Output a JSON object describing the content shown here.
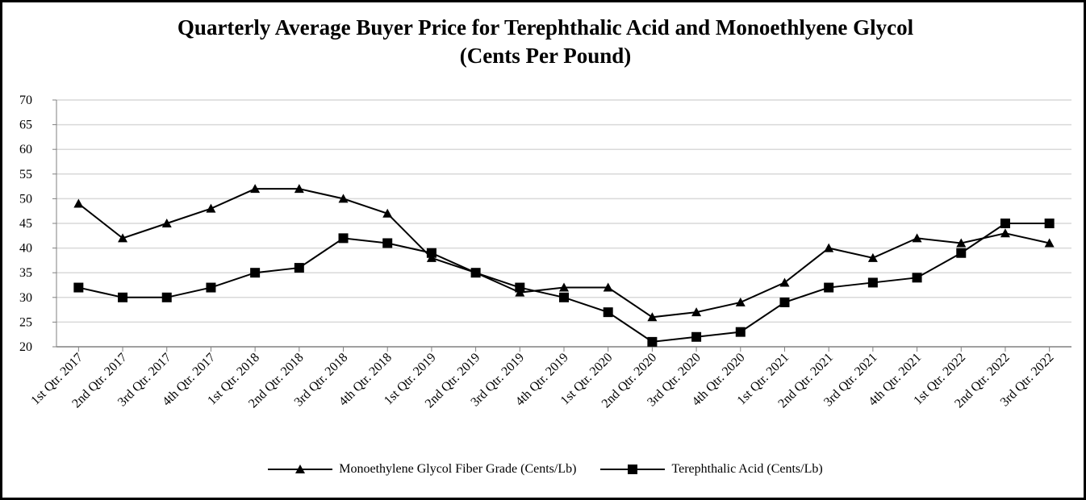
{
  "chart_data": {
    "type": "line",
    "title": "Quarterly Average Buyer Price for Terephthalic Acid and Monoethlyene Glycol",
    "subtitle": "(Cents Per Pound)",
    "xlabel": "",
    "ylabel": "",
    "ylim": [
      20,
      70
    ],
    "yticks": [
      20,
      25,
      30,
      35,
      40,
      45,
      50,
      55,
      60,
      65,
      70
    ],
    "grid": true,
    "legend_position": "bottom",
    "categories": [
      "1st Qtr. 2017",
      "2nd Qtr. 2017",
      "3rd Qtr. 2017",
      "4th Qtr. 2017",
      "1st Qtr. 2018",
      "2nd Qtr. 2018",
      "3rd Qtr. 2018",
      "4th Qtr. 2018",
      "1st Qtr. 2019",
      "2nd Qtr. 2019",
      "3rd Qtr. 2019",
      "4th Qtr. 2019",
      "1st Qtr. 2020",
      "2nd Qtr. 2020",
      "3rd Qtr. 2020",
      "4th Qtr. 2020",
      "1st Qtr. 2021",
      "2nd Qtr. 2021",
      "3rd Qtr. 2021",
      "4th Qtr. 2021",
      "1st Qtr. 2022",
      "2nd Qtr. 2022",
      "3rd Qtr. 2022"
    ],
    "series": [
      {
        "name": "Monoethylene Glycol Fiber Grade (Cents/Lb)",
        "marker": "triangle",
        "color": "#000000",
        "values": [
          49,
          42,
          45,
          48,
          52,
          52,
          50,
          47,
          38,
          35,
          31,
          32,
          32,
          26,
          27,
          29,
          33,
          40,
          38,
          42,
          41,
          43,
          41
        ]
      },
      {
        "name": "Terephthalic Acid (Cents/Lb)",
        "marker": "square",
        "color": "#000000",
        "values": [
          32,
          30,
          30,
          32,
          35,
          36,
          42,
          41,
          39,
          35,
          32,
          30,
          27,
          21,
          22,
          23,
          29,
          32,
          33,
          34,
          39,
          45,
          45
        ]
      }
    ]
  }
}
